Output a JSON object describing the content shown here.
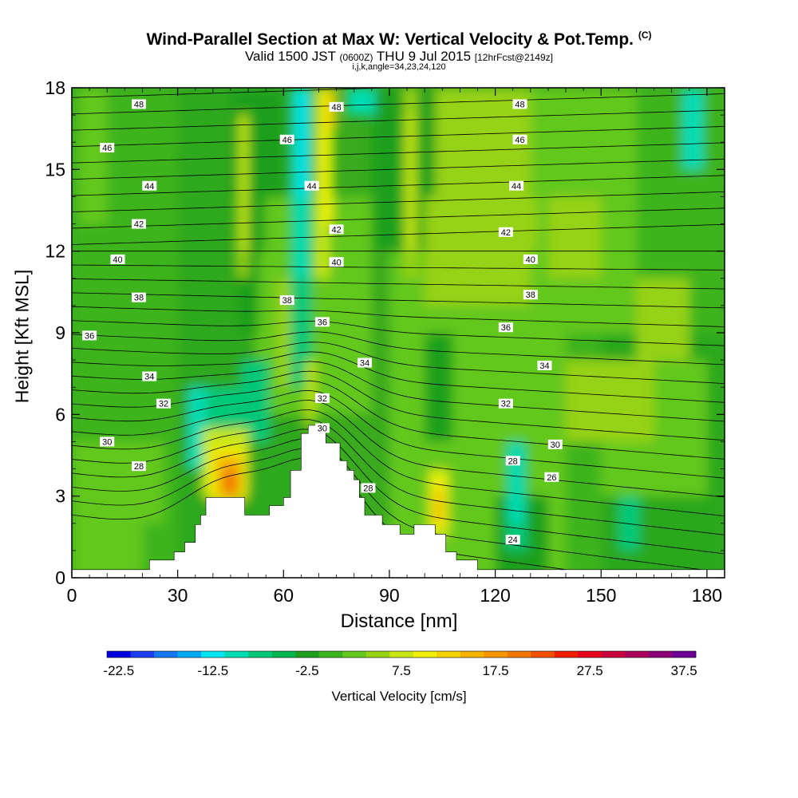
{
  "chart_data": {
    "type": "heatmap",
    "title": "Wind-Parallel Section at Max W: Vertical Velocity & Pot.Temp.",
    "title_mark": "(C)",
    "subtitle_main": "Valid 1500 JST",
    "subtitle_utc": "(0600Z)",
    "subtitle_date": "THU 9 Jul 2015",
    "subtitle_fcst": "[12hrFcst@2149z]",
    "params": "i,j,k,angle=34,23,24,120",
    "xlabel": "Distance [nm]",
    "ylabel": "Height [Kft MSL]",
    "xlim": [
      0,
      185
    ],
    "ylim": [
      0,
      18
    ],
    "x_ticks": [
      "0",
      "30",
      "60",
      "90",
      "120",
      "150",
      "180"
    ],
    "y_ticks": [
      "0",
      "3",
      "6",
      "9",
      "12",
      "15",
      "18"
    ],
    "colorbar": {
      "label": "Vertical Velocity [cm/s]",
      "tick_labels": [
        "-22.5",
        "-12.5",
        "-2.5",
        "7.5",
        "17.5",
        "27.5",
        "37.5"
      ],
      "colors": [
        "#0000e0",
        "#1e3cf0",
        "#1478f0",
        "#00aaf0",
        "#00e6f0",
        "#00dcb4",
        "#00c878",
        "#00b450",
        "#1ea01e",
        "#3cb41e",
        "#64c81e",
        "#96d214",
        "#c8e614",
        "#f0f000",
        "#f5d200",
        "#f5b400",
        "#f59600",
        "#f07800",
        "#f05000",
        "#f01e00",
        "#e6001e",
        "#c8003c",
        "#aa005a",
        "#8c0078",
        "#6e0096"
      ]
    },
    "theta_contour_labels": [
      {
        "x": 5,
        "y": 8.9,
        "text": "36"
      },
      {
        "x": 10,
        "y": 15.8,
        "text": "46"
      },
      {
        "x": 10,
        "y": 5.0,
        "text": "30"
      },
      {
        "x": 13,
        "y": 11.7,
        "text": "40"
      },
      {
        "x": 19,
        "y": 17.4,
        "text": "48"
      },
      {
        "x": 19,
        "y": 13.0,
        "text": "42"
      },
      {
        "x": 19,
        "y": 10.3,
        "text": "38"
      },
      {
        "x": 19,
        "y": 4.1,
        "text": "28"
      },
      {
        "x": 22,
        "y": 14.4,
        "text": "44"
      },
      {
        "x": 22,
        "y": 7.4,
        "text": "34"
      },
      {
        "x": 26,
        "y": 6.4,
        "text": "32"
      },
      {
        "x": 61,
        "y": 16.1,
        "text": "46"
      },
      {
        "x": 61,
        "y": 10.2,
        "text": "38"
      },
      {
        "x": 68,
        "y": 14.4,
        "text": "44"
      },
      {
        "x": 71,
        "y": 9.4,
        "text": "36"
      },
      {
        "x": 71,
        "y": 6.6,
        "text": "32"
      },
      {
        "x": 71,
        "y": 5.5,
        "text": "30"
      },
      {
        "x": 75,
        "y": 17.3,
        "text": "48"
      },
      {
        "x": 75,
        "y": 12.8,
        "text": "42"
      },
      {
        "x": 75,
        "y": 11.6,
        "text": "40"
      },
      {
        "x": 83,
        "y": 7.9,
        "text": "34"
      },
      {
        "x": 84,
        "y": 3.3,
        "text": "28"
      },
      {
        "x": 123,
        "y": 12.7,
        "text": "42"
      },
      {
        "x": 123,
        "y": 9.2,
        "text": "36"
      },
      {
        "x": 123,
        "y": 6.4,
        "text": "32"
      },
      {
        "x": 125,
        "y": 4.3,
        "text": "28"
      },
      {
        "x": 125,
        "y": 1.4,
        "text": "24"
      },
      {
        "x": 126,
        "y": 14.4,
        "text": "44"
      },
      {
        "x": 127,
        "y": 17.4,
        "text": "48"
      },
      {
        "x": 127,
        "y": 16.1,
        "text": "46"
      },
      {
        "x": 130,
        "y": 11.7,
        "text": "40"
      },
      {
        "x": 130,
        "y": 10.4,
        "text": "38"
      },
      {
        "x": 134,
        "y": 7.8,
        "text": "34"
      },
      {
        "x": 136,
        "y": 3.7,
        "text": "26"
      },
      {
        "x": 137,
        "y": 4.9,
        "text": "30"
      }
    ],
    "terrain_profile": [
      [
        0,
        0.3
      ],
      [
        22,
        0.3
      ],
      [
        22,
        0.65
      ],
      [
        29,
        0.65
      ],
      [
        29,
        0.95
      ],
      [
        32,
        0.95
      ],
      [
        32,
        1.3
      ],
      [
        35,
        1.3
      ],
      [
        35,
        1.95
      ],
      [
        36.5,
        1.95
      ],
      [
        36.5,
        2.3
      ],
      [
        38,
        2.3
      ],
      [
        38,
        2.95
      ],
      [
        49,
        2.95
      ],
      [
        49,
        2.3
      ],
      [
        56,
        2.3
      ],
      [
        56,
        2.65
      ],
      [
        60,
        2.65
      ],
      [
        60,
        2.95
      ],
      [
        62,
        2.95
      ],
      [
        62,
        3.95
      ],
      [
        65,
        3.95
      ],
      [
        65,
        5.3
      ],
      [
        67,
        5.3
      ],
      [
        67,
        5.6
      ],
      [
        72,
        5.6
      ],
      [
        72,
        4.95
      ],
      [
        76,
        4.95
      ],
      [
        76,
        4.3
      ],
      [
        78,
        4.3
      ],
      [
        78,
        3.95
      ],
      [
        80,
        3.95
      ],
      [
        80,
        3.6
      ],
      [
        81.5,
        3.6
      ],
      [
        81.5,
        2.95
      ],
      [
        83,
        2.95
      ],
      [
        83,
        2.3
      ],
      [
        88,
        2.3
      ],
      [
        88,
        1.95
      ],
      [
        93,
        1.95
      ],
      [
        93,
        1.6
      ],
      [
        97,
        1.6
      ],
      [
        97,
        1.95
      ],
      [
        103,
        1.95
      ],
      [
        103,
        1.6
      ],
      [
        106,
        1.6
      ],
      [
        106,
        0.95
      ],
      [
        109,
        0.95
      ],
      [
        109,
        0.65
      ],
      [
        115,
        0.65
      ],
      [
        115,
        0.3
      ],
      [
        185,
        0.3
      ],
      [
        185,
        0
      ]
    ]
  }
}
